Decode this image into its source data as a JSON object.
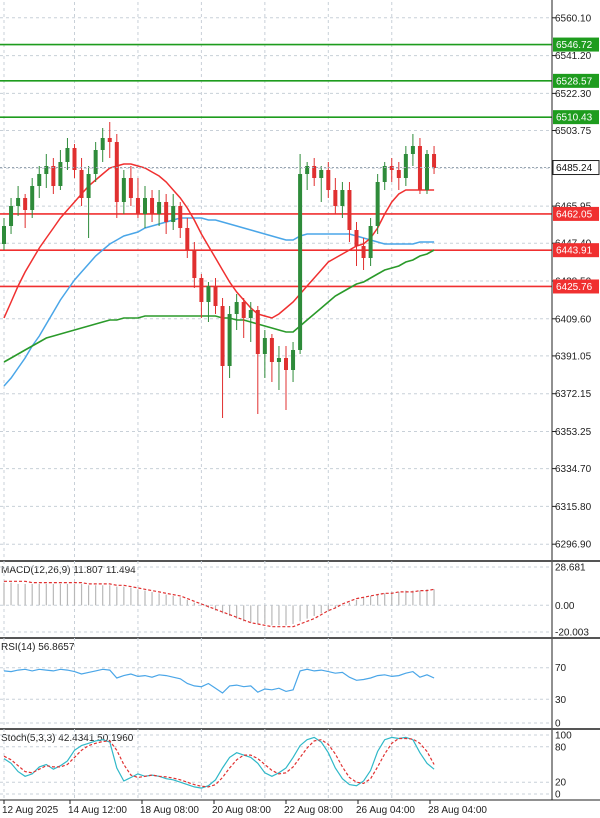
{
  "chart_data": {
    "type": "candlestick",
    "price_axis_ticks": [
      "6560.10",
      "6541.20",
      "6522.30",
      "6503.75",
      "6484.85",
      "6465.95",
      "6447.40",
      "6428.50",
      "6409.60",
      "6391.05",
      "6372.15",
      "6353.25",
      "6334.70",
      "6315.80",
      "6296.90"
    ],
    "ylim": [
      6290,
      6568
    ],
    "time_labels": [
      "12 Aug 2025",
      "14 Aug 12:00",
      "18 Aug 08:00",
      "20 Aug 08:00",
      "22 Aug 08:00",
      "26 Aug 04:00",
      "28 Aug 04:00"
    ],
    "current_price": "6485.24",
    "green_levels": [
      {
        "value": 6546.72,
        "label": "6546.72"
      },
      {
        "value": 6528.57,
        "label": "6528.57"
      },
      {
        "value": 6510.43,
        "label": "6510.43"
      }
    ],
    "red_levels": [
      {
        "value": 6462.05,
        "label": "6462.05"
      },
      {
        "value": 6443.91,
        "label": "6443.91"
      },
      {
        "value": 6425.76,
        "label": "6425.76"
      }
    ],
    "candles": [
      [
        6447,
        6460,
        6444,
        6456
      ],
      [
        6456,
        6470,
        6452,
        6466
      ],
      [
        6466,
        6476,
        6461,
        6470
      ],
      [
        6470,
        6472,
        6455,
        6464
      ],
      [
        6464,
        6480,
        6460,
        6476
      ],
      [
        6476,
        6486,
        6470,
        6482
      ],
      [
        6482,
        6492,
        6475,
        6486
      ],
      [
        6486,
        6490,
        6472,
        6476
      ],
      [
        6476,
        6494,
        6474,
        6488
      ],
      [
        6488,
        6500,
        6484,
        6495
      ],
      [
        6495,
        6497,
        6480,
        6484
      ],
      [
        6484,
        6490,
        6466,
        6470
      ],
      [
        6470,
        6486,
        6450,
        6482
      ],
      [
        6482,
        6498,
        6478,
        6494
      ],
      [
        6494,
        6505,
        6488,
        6500
      ],
      [
        6500,
        6508,
        6490,
        6498
      ],
      [
        6498,
        6502,
        6460,
        6468
      ],
      [
        6468,
        6484,
        6462,
        6480
      ],
      [
        6480,
        6486,
        6466,
        6470
      ],
      [
        6470,
        6480,
        6460,
        6462
      ],
      [
        6462,
        6476,
        6455,
        6470
      ],
      [
        6470,
        6474,
        6458,
        6462
      ],
      [
        6462,
        6474,
        6456,
        6468
      ],
      [
        6468,
        6472,
        6452,
        6458
      ],
      [
        6458,
        6472,
        6454,
        6466
      ],
      [
        6466,
        6468,
        6450,
        6455
      ],
      [
        6455,
        6460,
        6440,
        6444
      ],
      [
        6444,
        6448,
        6425,
        6430
      ],
      [
        6430,
        6432,
        6410,
        6418
      ],
      [
        6418,
        6428,
        6408,
        6426
      ],
      [
        6426,
        6430,
        6412,
        6416
      ],
      [
        6416,
        6420,
        6360,
        6386
      ],
      [
        6386,
        6416,
        6380,
        6412
      ],
      [
        6412,
        6422,
        6404,
        6418
      ],
      [
        6418,
        6420,
        6400,
        6410
      ],
      [
        6410,
        6418,
        6398,
        6414
      ],
      [
        6414,
        6416,
        6362,
        6392
      ],
      [
        6392,
        6404,
        6380,
        6400
      ],
      [
        6400,
        6402,
        6378,
        6388
      ],
      [
        6388,
        6396,
        6374,
        6390
      ],
      [
        6390,
        6396,
        6364,
        6384
      ],
      [
        6384,
        6398,
        6378,
        6394
      ],
      [
        6394,
        6492,
        6392,
        6482
      ],
      [
        6482,
        6488,
        6474,
        6486
      ],
      [
        6486,
        6490,
        6476,
        6480
      ],
      [
        6480,
        6486,
        6468,
        6484
      ],
      [
        6484,
        6488,
        6470,
        6474
      ],
      [
        6474,
        6480,
        6462,
        6466
      ],
      [
        6466,
        6478,
        6460,
        6474
      ],
      [
        6474,
        6478,
        6448,
        6454
      ],
      [
        6454,
        6458,
        6436,
        6446
      ],
      [
        6446,
        6450,
        6434,
        6440
      ],
      [
        6440,
        6460,
        6436,
        6456
      ],
      [
        6456,
        6482,
        6452,
        6478
      ],
      [
        6478,
        6488,
        6474,
        6486
      ],
      [
        6486,
        6490,
        6478,
        6484
      ],
      [
        6484,
        6488,
        6474,
        6480
      ],
      [
        6480,
        6496,
        6476,
        6492
      ],
      [
        6492,
        6502,
        6486,
        6496
      ],
      [
        6496,
        6500,
        6472,
        6474
      ],
      [
        6474,
        6494,
        6472,
        6492
      ],
      [
        6492,
        6496,
        6482,
        6485
      ]
    ],
    "indicators": {
      "macd": {
        "title": "MACD(12,26,9) 11.807 11.494",
        "ticks": [
          "28.681",
          "0.00",
          "-20.003"
        ],
        "ylim": [
          -20.003,
          28.681
        ],
        "histogram": [
          17,
          17,
          16,
          16,
          16,
          16,
          16,
          16,
          16,
          16,
          16,
          16,
          15,
          15,
          15,
          15,
          14,
          14,
          13,
          12,
          11,
          10,
          9,
          8,
          7,
          6,
          4,
          2,
          0,
          -2,
          -4,
          -6,
          -8,
          -10,
          -12,
          -13,
          -14,
          -14,
          -15,
          -15,
          -15,
          -14,
          -12,
          -10,
          -8,
          -6,
          -4,
          -2,
          0,
          2,
          4,
          6,
          7,
          8,
          9,
          10,
          10,
          11,
          11,
          11,
          12,
          12
        ],
        "signal": [
          18,
          18,
          18,
          18,
          17,
          17,
          17,
          17,
          17,
          17,
          17,
          17,
          16,
          16,
          16,
          16,
          15,
          15,
          14,
          13,
          12,
          11,
          10,
          9,
          8,
          7,
          5,
          3,
          1,
          -1,
          -3,
          -5,
          -7,
          -9,
          -11,
          -13,
          -14,
          -15,
          -16,
          -16,
          -16,
          -16,
          -14,
          -12,
          -10,
          -7,
          -4,
          -2,
          1,
          3,
          5,
          6,
          7,
          8,
          9,
          9,
          10,
          10,
          10,
          11,
          11,
          12
        ]
      },
      "rsi": {
        "title": "RSI(14) 56.8657",
        "ticks": [
          "70",
          "30",
          "0"
        ],
        "ylim": [
          0,
          100
        ],
        "values": [
          66,
          65,
          67,
          68,
          66,
          68,
          67,
          66,
          68,
          67,
          65,
          62,
          64,
          66,
          68,
          67,
          57,
          60,
          62,
          59,
          60,
          58,
          61,
          60,
          58,
          56,
          50,
          47,
          46,
          50,
          44,
          38,
          47,
          48,
          46,
          47,
          39,
          43,
          42,
          44,
          40,
          42,
          66,
          68,
          66,
          67,
          65,
          63,
          64,
          58,
          54,
          55,
          57,
          60,
          61,
          59,
          60,
          63,
          65,
          58,
          61,
          57
        ]
      },
      "stoch": {
        "title": "Stoch(5,3,3) 42.4341 50.1960",
        "ticks": [
          "100",
          "80",
          "20",
          "0"
        ],
        "ylim": [
          0,
          100
        ],
        "k": [
          60,
          52,
          38,
          30,
          34,
          46,
          50,
          42,
          48,
          56,
          74,
          82,
          86,
          90,
          92,
          88,
          44,
          22,
          28,
          34,
          30,
          32,
          30,
          26,
          24,
          20,
          16,
          12,
          10,
          14,
          24,
          44,
          62,
          70,
          66,
          62,
          52,
          36,
          30,
          36,
          44,
          62,
          82,
          92,
          96,
          88,
          70,
          44,
          26,
          16,
          14,
          22,
          40,
          72,
          92,
          96,
          94,
          96,
          92,
          70,
          52,
          42
        ],
        "d": [
          64,
          58,
          48,
          38,
          36,
          42,
          48,
          46,
          46,
          50,
          62,
          74,
          82,
          86,
          89,
          90,
          74,
          50,
          32,
          28,
          30,
          32,
          30,
          29,
          27,
          24,
          20,
          16,
          13,
          12,
          16,
          28,
          44,
          58,
          66,
          66,
          60,
          50,
          40,
          34,
          36,
          46,
          62,
          78,
          90,
          92,
          84,
          68,
          46,
          28,
          20,
          18,
          26,
          46,
          68,
          86,
          94,
          94,
          93,
          86,
          72,
          50
        ]
      }
    },
    "ma_lines": {
      "red_ma": [
        6410,
        6418,
        6426,
        6433,
        6439,
        6445,
        6450,
        6455,
        6460,
        6464,
        6468,
        6472,
        6476,
        6479,
        6482,
        6485,
        6486,
        6487,
        6487,
        6486,
        6485,
        6483,
        6481,
        6478,
        6474,
        6470,
        6465,
        6459,
        6452,
        6446,
        6440,
        6434,
        6428,
        6423,
        6419,
        6415,
        6412,
        6411,
        6410,
        6412,
        6415,
        6418,
        6422,
        6426,
        6430,
        6434,
        6438,
        6440,
        6442,
        6444,
        6446,
        6447,
        6450,
        6455,
        6462,
        6468,
        6472,
        6474,
        6474,
        6474,
        6474,
        6474
      ],
      "blue_ma": [
        6376,
        6380,
        6385,
        6390,
        6396,
        6401,
        6407,
        6413,
        6419,
        6424,
        6429,
        6433,
        6437,
        6441,
        6444,
        6447,
        6449,
        6451,
        6452,
        6453,
        6455,
        6456,
        6457,
        6458,
        6459,
        6460,
        6460,
        6460,
        6460,
        6459,
        6459,
        6458,
        6457,
        6456,
        6455,
        6454,
        6453,
        6452,
        6451,
        6450,
        6449,
        6449,
        6451,
        6452,
        6452,
        6452,
        6452,
        6452,
        6452,
        6452,
        6451,
        6450,
        6449,
        6448,
        6447,
        6447,
        6447,
        6447,
        6447,
        6448,
        6448,
        6448
      ],
      "green_ma": [
        6388,
        6390,
        6392,
        6394,
        6396,
        6398,
        6400,
        6401,
        6402,
        6403,
        6404,
        6405,
        6406,
        6407,
        6408,
        6409,
        6409,
        6410,
        6410,
        6410,
        6411,
        6411,
        6411,
        6411,
        6411,
        6411,
        6411,
        6411,
        6411,
        6411,
        6411,
        6410,
        6410,
        6409,
        6409,
        6408,
        6407,
        6406,
        6405,
        6404,
        6403,
        6403,
        6406,
        6409,
        6412,
        6415,
        6418,
        6421,
        6423,
        6425,
        6427,
        6428,
        6430,
        6432,
        6434,
        6435,
        6436,
        6438,
        6439,
        6441,
        6442,
        6444
      ]
    }
  },
  "colors": {
    "bull": "#2e8b3a",
    "bear": "#e03030",
    "level_green": "#1e9c1e",
    "level_red": "#f03030",
    "red_ma": "#f03030",
    "blue_ma": "#4aa6e8",
    "green_ma": "#2a9a2a",
    "macd_signal": "#e03030",
    "rsi_line": "#4aa6e8",
    "stoch_k": "#2fb8c8",
    "stoch_d": "#e03030"
  }
}
